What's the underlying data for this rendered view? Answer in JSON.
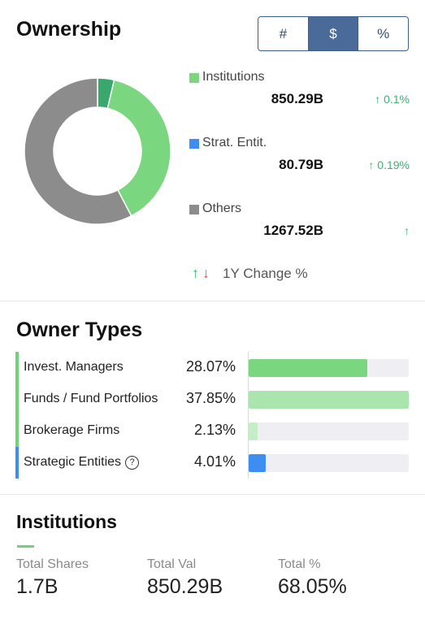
{
  "ownership": {
    "title": "Ownership",
    "toggle": [
      {
        "label": "#",
        "active": false
      },
      {
        "label": "$",
        "active": true
      },
      {
        "label": "%",
        "active": false
      }
    ],
    "segments": [
      {
        "label": "Institutions",
        "value": "850.29B",
        "change": "↑ 0.1%",
        "color": "#7ad67f",
        "amount": 850.29
      },
      {
        "label": "Strat. Entit.",
        "value": "80.79B",
        "change": "↑ 0.19%",
        "color": "#3aa86d",
        "amount": 80.79
      },
      {
        "label": "Others",
        "value": "1267.52B",
        "change": "↑",
        "color": "#8c8c8c",
        "amount": 1267.52
      }
    ],
    "legend_swatch_colors": [
      "#7ad67f",
      "#3d8ef0",
      "#8c8c8c"
    ],
    "year_change": {
      "up": "↑",
      "down": "↓",
      "label": "1Y Change %"
    }
  },
  "owner_types": {
    "title": "Owner Types",
    "rows": [
      {
        "label": "Invest. Managers",
        "pct": "28.07%",
        "fraction": 0.74,
        "stripe": "#6fd477",
        "fill": "#7ad67f",
        "help": false
      },
      {
        "label": "Funds / Fund Portfolios",
        "pct": "37.85%",
        "fraction": 1.0,
        "stripe": "#6fd477",
        "fill": "#a9e5ac",
        "help": false
      },
      {
        "label": "Brokerage Firms",
        "pct": "2.13%",
        "fraction": 0.056,
        "stripe": "#6fd477",
        "fill": "#c5eec7",
        "help": false
      },
      {
        "label": "Strategic Entities",
        "pct": "4.01%",
        "fraction": 0.106,
        "stripe": "#3d8ef0",
        "fill": "#3d8ef0",
        "help": true
      }
    ]
  },
  "institutions": {
    "title": "Institutions",
    "stats": [
      {
        "label": "Total Shares",
        "value": "1.7B"
      },
      {
        "label": "Total Val",
        "value": "850.29B"
      },
      {
        "label": "Total %",
        "value": "68.05%"
      }
    ]
  }
}
